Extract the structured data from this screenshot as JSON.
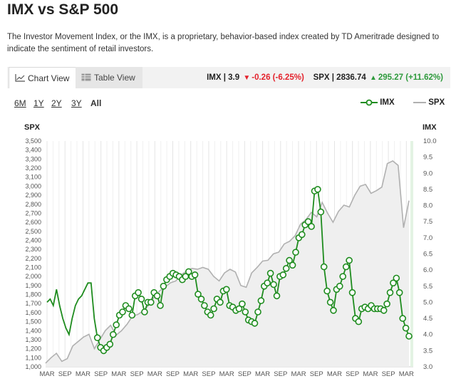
{
  "page": {
    "title": "IMX vs S&P 500",
    "description": "The Investor Movement Index, or the IMX, is a proprietary, behavior-based index created by TD Ameritrade designed to indicate the sentiment of retail investors."
  },
  "tabs": [
    {
      "label": "Chart View",
      "icon": "chart-icon",
      "active": true
    },
    {
      "label": "Table View",
      "icon": "table-icon",
      "active": false
    }
  ],
  "quotes": {
    "imx_label": "IMX | 3.9",
    "imx_change": "-0.26 (-6.25%)",
    "spx_label": "SPX | 2836.74",
    "spx_change": "295.27 (+11.62%)"
  },
  "ranges": [
    "6M",
    "1Y",
    "2Y",
    "3Y",
    "All"
  ],
  "active_range": "All",
  "legend": {
    "imx": "IMX",
    "spx": "SPX"
  },
  "colors": {
    "imx": "#1e8c1e",
    "spx": "#b0b0b0",
    "spx_fill": "#efefef",
    "neg": "#e4222c",
    "pos": "#2e9a3c"
  },
  "chart_data": {
    "type": "line",
    "left_axis_label": "SPX",
    "right_axis_label": "IMX",
    "left_ylim": [
      1000,
      3500
    ],
    "right_ylim": [
      3.0,
      10.0
    ],
    "left_ticks": [
      "1,000",
      "1,100",
      "1,200",
      "1,300",
      "1,400",
      "1,500",
      "1,600",
      "1,700",
      "1,800",
      "1,900",
      "2,000",
      "2,100",
      "2,200",
      "2,300",
      "2,400",
      "2,500",
      "2,600",
      "2,700",
      "2,800",
      "2,900",
      "3,000",
      "3,100",
      "3,200",
      "3,300",
      "3,400",
      "3,500"
    ],
    "right_ticks": [
      "3.0",
      "3.5",
      "4.0",
      "4.5",
      "5.0",
      "5.5",
      "6.0",
      "6.5",
      "7.0",
      "7.5",
      "8.0",
      "8.5",
      "9.0",
      "9.5",
      "10.0"
    ],
    "x_tick_labels": [
      "MAR",
      "SEP",
      "MAR",
      "SEP",
      "MAR",
      "SEP",
      "MAR",
      "SEP",
      "MAR",
      "SEP",
      "MAR",
      "SEP",
      "MAR",
      "SEP",
      "MAR",
      "SEP",
      "MAR",
      "SEP",
      "MAR",
      "SEP",
      "MAR"
    ],
    "series": [
      {
        "name": "SPX",
        "axis": "left",
        "values": [
          1040,
          1100,
          1150,
          1060,
          1090,
          1230,
          1280,
          1330,
          1360,
          1200,
          1300,
          1400,
          1460,
          1350,
          1400,
          1470,
          1560,
          1580,
          1620,
          1680,
          1770,
          1840,
          1880,
          1930,
          1950,
          2020,
          2060,
          2090,
          2080,
          2100,
          2080,
          2000,
          1950,
          2040,
          2080,
          2050,
          1900,
          1880,
          2040,
          2100,
          2170,
          2180,
          2250,
          2270,
          2360,
          2390,
          2450,
          2580,
          2630,
          2710,
          2660,
          2820,
          2700,
          2600,
          2720,
          2790,
          2770,
          2900,
          3000,
          3020,
          2920,
          2950,
          2990,
          3250,
          3280,
          3230,
          2540,
          2840
        ]
      },
      {
        "name": "IMX",
        "axis": "right",
        "values": [
          5.0,
          5.1,
          4.9,
          5.4,
          4.9,
          4.5,
          4.2,
          4.0,
          4.5,
          4.9,
          5.1,
          5.2,
          5.4,
          5.6,
          5.6,
          4.5,
          3.9,
          3.6,
          3.5,
          3.6,
          3.7,
          4.0,
          4.3,
          4.6,
          4.7,
          4.9,
          4.8,
          4.6,
          5.2,
          5.3,
          5.1,
          4.7,
          5.0,
          5.0,
          5.3,
          5.2,
          4.9,
          5.5,
          5.7,
          5.8,
          5.9,
          5.85,
          5.8,
          5.7,
          5.8,
          5.95,
          5.8,
          5.85,
          5.25,
          5.1,
          4.9,
          4.7,
          4.6,
          4.8,
          5.1,
          5.0,
          5.35,
          5.4,
          4.9,
          4.85,
          4.75,
          4.8,
          4.95,
          4.7,
          4.45,
          4.4,
          4.35,
          4.7,
          5.05,
          5.5,
          5.6,
          5.9,
          5.55,
          5.2,
          5.8,
          5.85,
          6.05,
          6.3,
          6.15,
          6.55,
          7.0,
          7.1,
          7.4,
          7.5,
          7.35,
          8.45,
          8.5,
          7.8,
          6.1,
          5.35,
          5.0,
          4.75,
          5.4,
          5.5,
          5.8,
          6.1,
          6.3,
          5.3,
          4.5,
          4.4,
          4.8,
          4.85,
          4.8,
          4.9,
          4.8,
          4.8,
          4.8,
          4.75,
          4.95,
          5.3,
          5.6,
          5.75,
          5.3,
          4.5,
          4.2,
          3.95
        ]
      }
    ]
  }
}
